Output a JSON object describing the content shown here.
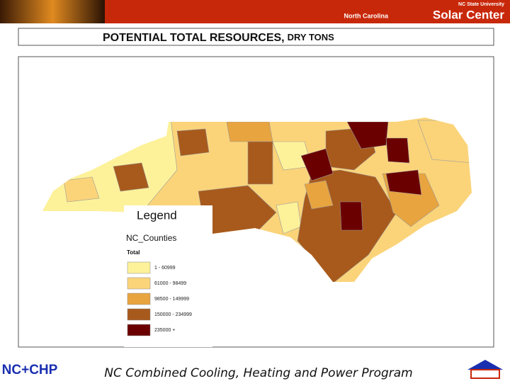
{
  "header": {
    "university": "NC State University",
    "center_prefix": "North Carolina",
    "center_name": "Solar Center"
  },
  "title": {
    "main": "POTENTIAL TOTAL RESOURCES,",
    "unit": "DRY TONS"
  },
  "legend": {
    "title": "Legend",
    "layer": "NC_Counties",
    "field": "Total",
    "classes": [
      {
        "label": "1 - 60999",
        "color": "#fdf29a"
      },
      {
        "label": "61000 - 98499",
        "color": "#fbd47a"
      },
      {
        "label": "98500 - 149999",
        "color": "#e8a43f"
      },
      {
        "label": "150000 - 234999",
        "color": "#a85a1c"
      },
      {
        "label": "235000 +",
        "color": "#6b0000"
      }
    ]
  },
  "footer": {
    "logo": "NC+CHP",
    "program": "NC Combined Cooling, Heating and Power Program"
  }
}
